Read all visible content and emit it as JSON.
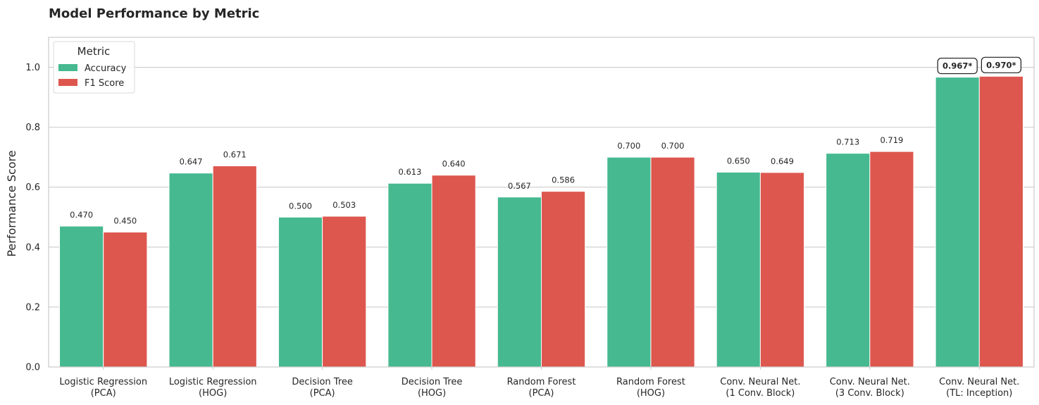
{
  "chart_data": {
    "type": "bar",
    "title": "Model Performance by Metric",
    "xlabel": "",
    "ylabel": "Performance Score",
    "ylim": [
      0,
      1.1
    ],
    "yticks": [
      "0.0",
      "0.2",
      "0.4",
      "0.6",
      "0.8",
      "1.0"
    ],
    "grid": true,
    "legend": {
      "title": "Metric",
      "placement": "top-left"
    },
    "categories": [
      [
        "Logistic Regression",
        "(PCA)"
      ],
      [
        "Logistic Regression",
        "(HOG)"
      ],
      [
        "Decision Tree",
        "(PCA)"
      ],
      [
        "Decision Tree",
        "(HOG)"
      ],
      [
        "Random Forest",
        "(PCA)"
      ],
      [
        "Random Forest",
        "(HOG)"
      ],
      [
        "Conv. Neural Net.",
        "(1 Conv. Block)"
      ],
      [
        "Conv. Neural Net.",
        "(3 Conv. Block)"
      ],
      [
        "Conv. Neural Net.",
        "(TL: Inception)"
      ]
    ],
    "series": [
      {
        "name": "Accuracy",
        "color": "#46b990",
        "values": [
          0.47,
          0.647,
          0.5,
          0.613,
          0.567,
          0.7,
          0.65,
          0.713,
          0.967
        ],
        "labels": [
          "0.470",
          "0.647",
          "0.500",
          "0.613",
          "0.567",
          "0.700",
          "0.650",
          "0.713",
          "0.967*"
        ]
      },
      {
        "name": "F1 Score",
        "color": "#dd574e",
        "values": [
          0.45,
          0.671,
          0.503,
          0.64,
          0.586,
          0.7,
          0.649,
          0.719,
          0.97
        ],
        "labels": [
          "0.450",
          "0.671",
          "0.503",
          "0.640",
          "0.586",
          "0.700",
          "0.649",
          "0.719",
          "0.970*"
        ]
      }
    ],
    "highlighted_category_index": 8
  }
}
